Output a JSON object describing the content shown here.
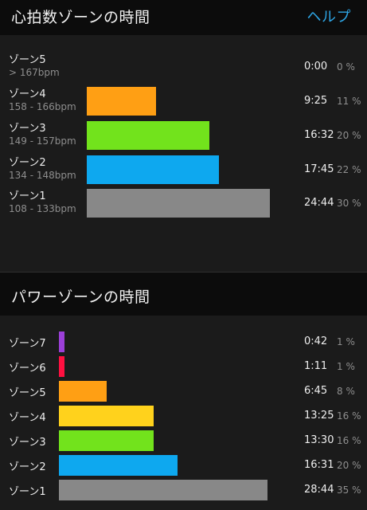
{
  "heart_rate": {
    "title": "心拍数ゾーンの時間",
    "help_label": "ヘルプ",
    "zones": [
      {
        "name": "ゾーン5",
        "range": "> 167bpm",
        "time": "0:00",
        "pct": "0 %",
        "fraction": 0.0,
        "color": "#7a7a7a"
      },
      {
        "name": "ゾーン4",
        "range": "158 - 166bpm",
        "time": "9:25",
        "pct": "11 %",
        "fraction": 0.38,
        "color": "#ff9f14"
      },
      {
        "name": "ゾーン3",
        "range": "149 - 157bpm",
        "time": "16:32",
        "pct": "20 %",
        "fraction": 0.67,
        "color": "#72e31c"
      },
      {
        "name": "ゾーン2",
        "range": "134 - 148bpm",
        "time": "17:45",
        "pct": "22 %",
        "fraction": 0.72,
        "color": "#0ea8ef"
      },
      {
        "name": "ゾーン1",
        "range": "108 - 133bpm",
        "time": "24:44",
        "pct": "30 %",
        "fraction": 1.0,
        "color": "#888888"
      }
    ]
  },
  "power": {
    "title": "パワーゾーンの時間",
    "zones": [
      {
        "name": "ゾーン7",
        "time": "0:42",
        "pct": "1 %",
        "fraction": 0.025,
        "color": "#9b3fd8"
      },
      {
        "name": "ゾーン6",
        "time": "1:11",
        "pct": "1 %",
        "fraction": 0.025,
        "color": "#ff1040"
      },
      {
        "name": "ゾーン5",
        "time": "6:45",
        "pct": "8 %",
        "fraction": 0.23,
        "color": "#ff9f14"
      },
      {
        "name": "ゾーン4",
        "time": "13:25",
        "pct": "16 %",
        "fraction": 0.455,
        "color": "#ffd21c"
      },
      {
        "name": "ゾーン3",
        "time": "13:30",
        "pct": "16 %",
        "fraction": 0.455,
        "color": "#72e31c"
      },
      {
        "name": "ゾーン2",
        "time": "16:31",
        "pct": "20 %",
        "fraction": 0.57,
        "color": "#0ea8ef"
      },
      {
        "name": "ゾーン1",
        "time": "28:44",
        "pct": "35 %",
        "fraction": 1.0,
        "color": "#888888"
      }
    ]
  }
}
